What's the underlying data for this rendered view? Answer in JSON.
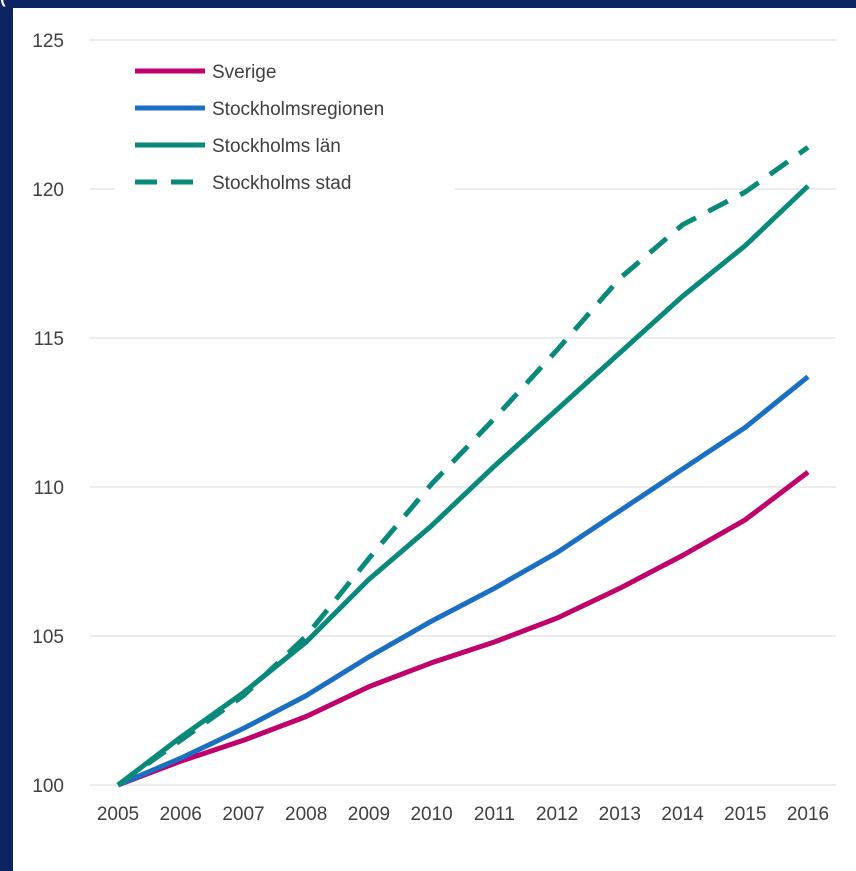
{
  "top_caption": "(",
  "chart_data": {
    "type": "line",
    "title": "",
    "xlabel": "",
    "ylabel": "",
    "x": [
      "2005",
      "2006",
      "2007",
      "2008",
      "2009",
      "2010",
      "2011",
      "2012",
      "2013",
      "2014",
      "2015",
      "2016"
    ],
    "ylim": [
      100,
      125
    ],
    "yticks": [
      "100",
      "105",
      "110",
      "115",
      "120",
      "125"
    ],
    "grid": true,
    "legend": "top-left",
    "series": [
      {
        "name": "Sverige",
        "color": "#c0006b",
        "dash": false,
        "values": [
          100,
          100.8,
          101.5,
          102.3,
          103.3,
          104.1,
          104.8,
          105.6,
          106.6,
          107.7,
          108.9,
          110.5
        ]
      },
      {
        "name": "Stockholmsregionen",
        "color": "#1b6fc2",
        "dash": false,
        "values": [
          100,
          100.9,
          101.9,
          103.0,
          104.3,
          105.5,
          106.6,
          107.8,
          109.2,
          110.6,
          112.0,
          113.7
        ]
      },
      {
        "name": "Stockholms län",
        "color": "#08897a",
        "dash": false,
        "values": [
          100,
          101.6,
          103.1,
          104.8,
          106.9,
          108.7,
          110.7,
          112.6,
          114.5,
          116.4,
          118.1,
          120.1
        ]
      },
      {
        "name": "Stockholms stad",
        "color": "#08897a",
        "dash": true,
        "values": [
          100,
          101.5,
          103.0,
          105.0,
          107.6,
          110.1,
          112.3,
          114.6,
          117.0,
          118.8,
          119.9,
          121.4
        ]
      }
    ]
  }
}
